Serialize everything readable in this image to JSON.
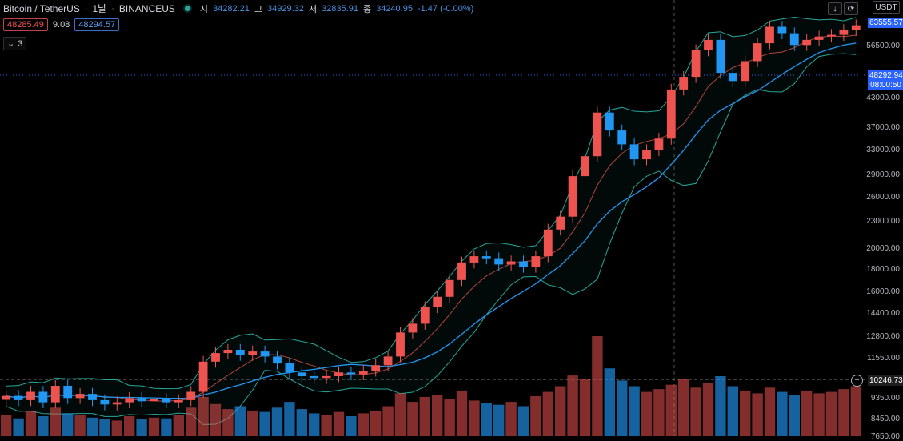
{
  "header": {
    "symbol": "Bitcoin / TetherUS",
    "interval": "1날",
    "exchange": "BINANCEUS",
    "sep": "·",
    "open_label": "시",
    "open": "34282.21",
    "high_label": "고",
    "high": "34929.32",
    "low_label": "저",
    "low": "32835.91",
    "close_label": "종",
    "close": "34240.95",
    "change": "-1.47 (-0.00%)"
  },
  "indicator": {
    "lower": "48285.49",
    "mid": "9.08",
    "upper": "48294.57",
    "collapsed_count": "3"
  },
  "toolbar": {
    "currency": "USDT",
    "down_arrow_icon": "down-arrow-icon",
    "refresh_icon": "refresh-icon"
  },
  "price_axis": {
    "labels": [
      "56500.00",
      "43000.00",
      "37000.00",
      "33000.00",
      "29000.00",
      "26000.00",
      "23000.00",
      "20000.00",
      "18000.00",
      "16000.00",
      "14400.00",
      "12800.00",
      "11550.00",
      "9350.00",
      "8450.00",
      "7650.00"
    ],
    "current_price": "63555.57",
    "crosshair_price": "48292.94",
    "countdown": "08:00:50",
    "dashed_price": "10246.73"
  },
  "colors": {
    "up": "#ef5350",
    "down": "#2196f3",
    "band": "#26a69a",
    "ma": "#2196f3",
    "basis": "#b2443b",
    "price_tag": "#2962ff"
  },
  "chart_data": {
    "type": "candlestick",
    "scale": "log",
    "ylim": [
      7650,
      65000
    ],
    "overlays": [
      "Bollinger Bands",
      "Moving Average"
    ],
    "series": [
      {
        "name": "price",
        "values": [
          9400,
          9200,
          9600,
          9100,
          9900,
          9300,
          9500,
          9200,
          9000,
          9100,
          9300,
          9150,
          9250,
          9100,
          9200,
          9600,
          11200,
          11700,
          11900,
          11600,
          11800,
          11500,
          11100,
          10600,
          10400,
          10300,
          10400,
          10600,
          10500,
          10700,
          11000,
          11500,
          13000,
          13600,
          14800,
          15600,
          17000,
          18600,
          19200,
          19000,
          18400,
          18700,
          18200,
          19200,
          22000,
          23500,
          28900,
          32000,
          40000,
          36500,
          34000,
          31500,
          33000,
          35000,
          45000,
          48000,
          55000,
          58000,
          49000,
          47000,
          52000,
          57000,
          62000,
          60000,
          56500,
          58000,
          59000,
          59500,
          61000,
          62500
        ]
      },
      {
        "name": "volume",
        "values": [
          30,
          25,
          35,
          28,
          40,
          32,
          30,
          26,
          24,
          22,
          28,
          24,
          26,
          25,
          30,
          40,
          55,
          45,
          38,
          42,
          36,
          34,
          40,
          48,
          38,
          32,
          30,
          34,
          28,
          32,
          36,
          42,
          60,
          48,
          55,
          58,
          52,
          64,
          50,
          46,
          44,
          48,
          42,
          56,
          62,
          70,
          85,
          80,
          140,
          95,
          78,
          70,
          62,
          66,
          72,
          80,
          68,
          74,
          84,
          70,
          64,
          60,
          68,
          62,
          58,
          64,
          60,
          62,
          66,
          70
        ]
      }
    ]
  }
}
